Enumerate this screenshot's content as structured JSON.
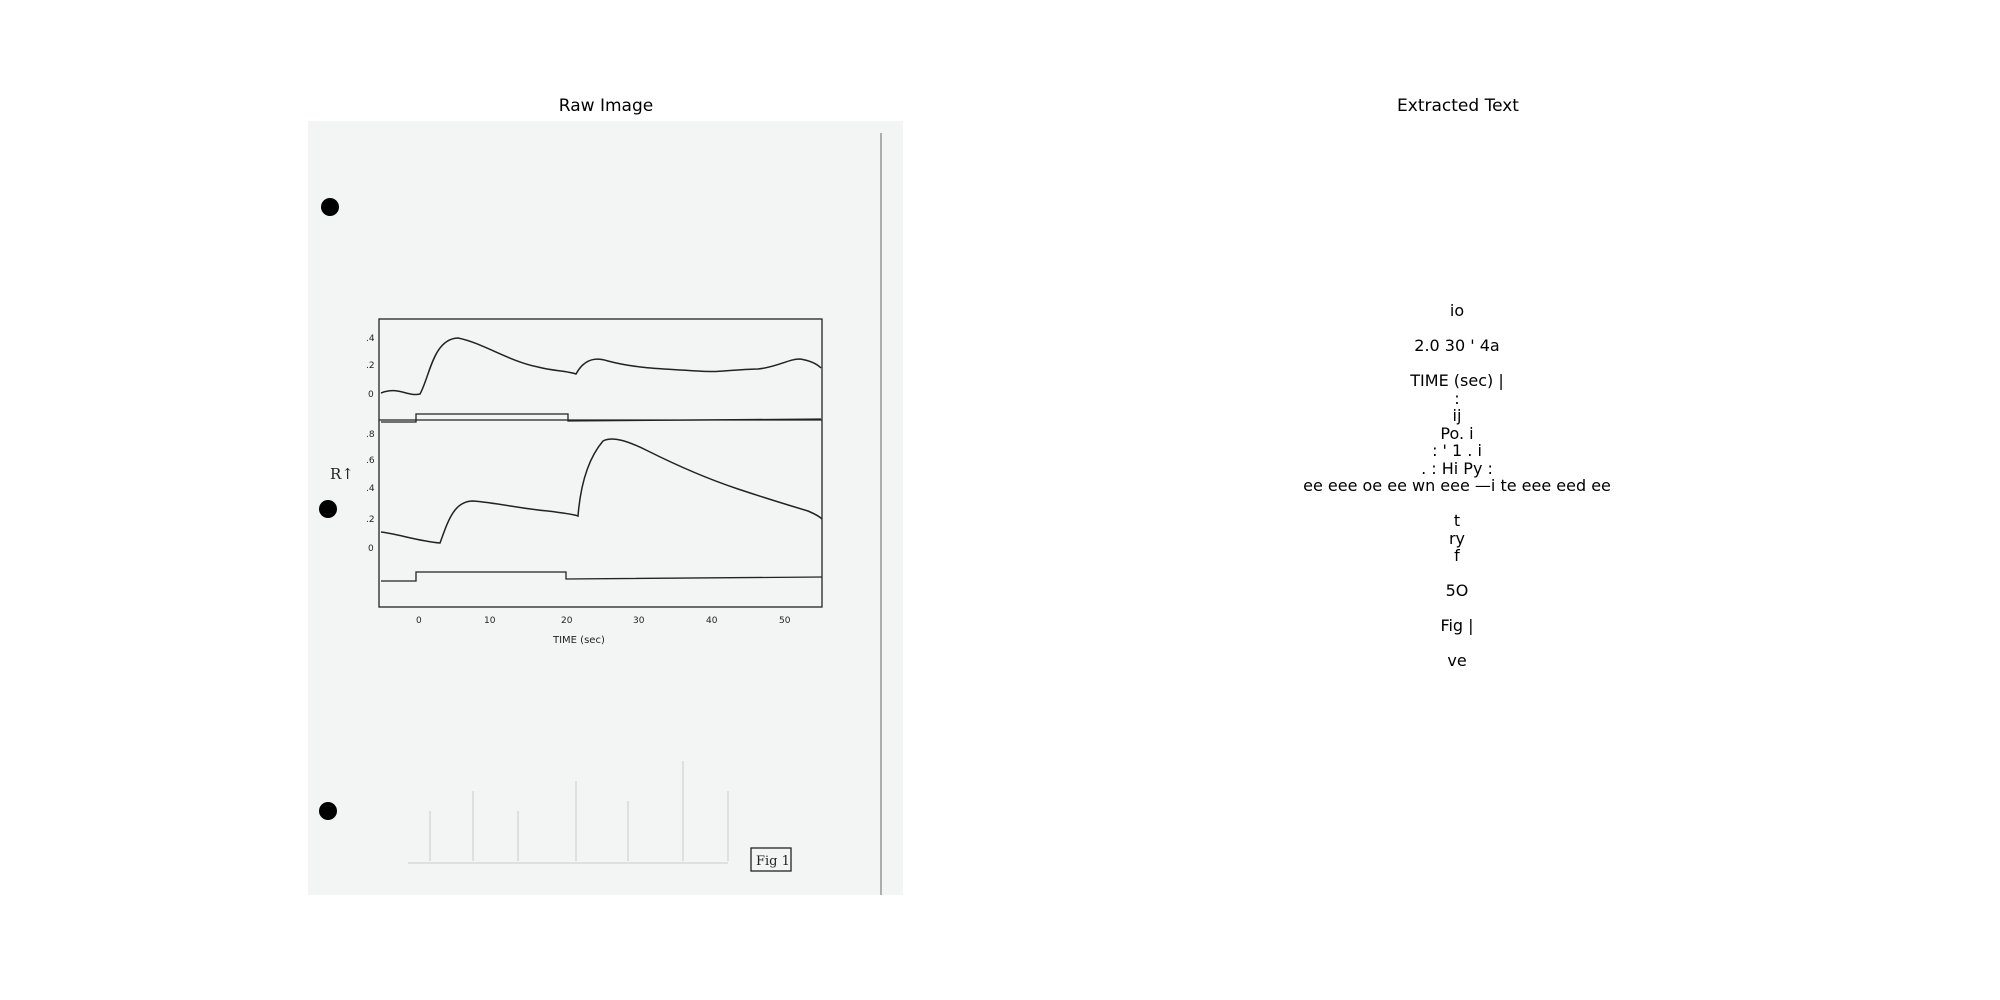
{
  "panels": {
    "left_title": "Raw Image",
    "right_title": "Extracted Text"
  },
  "scan": {
    "tick_labels_top_y": [
      ".4",
      ".2",
      "0"
    ],
    "tick_labels_bottom_y": [
      ".8",
      ".6",
      ".4",
      ".2",
      "0"
    ],
    "y_axis_label": "R↑",
    "x_ticks": [
      "0",
      "10",
      "20",
      "30",
      "40",
      "50"
    ],
    "x_axis_label": "TIME (sec)",
    "figure_label": "Fig 1"
  },
  "extracted_text": {
    "lines": [
      "io",
      "",
      "2.0 30 ' 4a",
      "",
      "TIME (sec) |",
      ":",
      "ij",
      "Po. i",
      ": ' 1 . i",
      ". : Hi Py :",
      "ee eee oe ee wn eee —i te eee eed ee",
      "",
      "t",
      "ry",
      "f",
      "",
      "5O",
      "",
      "Fig |",
      "",
      "ve"
    ]
  }
}
